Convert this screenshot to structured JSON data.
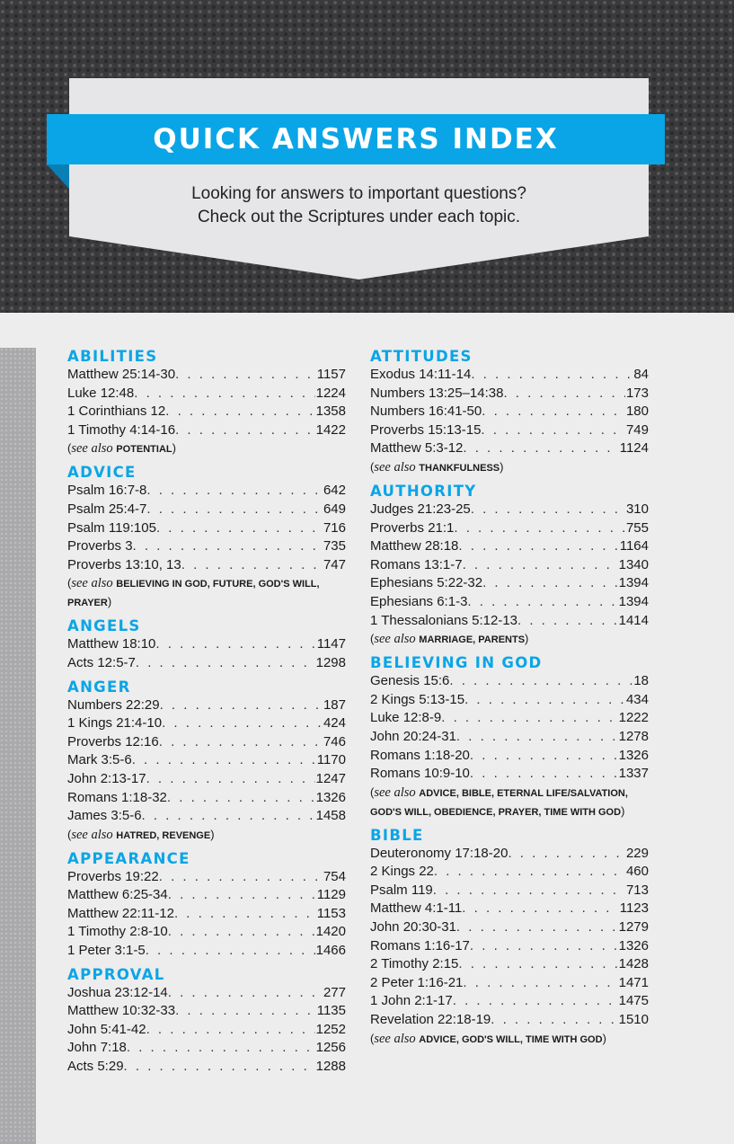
{
  "header": {
    "title": "QUICK ANSWERS INDEX",
    "subtitle_line1": "Looking for answers to important questions?",
    "subtitle_line2": "Check out the Scriptures under each topic.",
    "accent_color": "#0aa5e6"
  },
  "columns": [
    [
      {
        "title": "ABILITIES",
        "entries": [
          [
            "Matthew 25:14-30",
            "1157"
          ],
          [
            "Luke 12:48",
            "1224"
          ],
          [
            "1 Corinthians 12",
            "1358"
          ],
          [
            "1 Timothy 4:14-16",
            "1422"
          ]
        ],
        "see_also": "POTENTIAL"
      },
      {
        "title": "ADVICE",
        "entries": [
          [
            "Psalm 16:7-8",
            "642"
          ],
          [
            "Psalm 25:4-7",
            "649"
          ],
          [
            "Psalm 119:105",
            "716"
          ],
          [
            "Proverbs 3",
            "735"
          ],
          [
            "Proverbs 13:10, 13",
            "747"
          ]
        ],
        "see_also": "BELIEVING IN GOD, FUTURE, GOD'S WILL, PRAYER"
      },
      {
        "title": "ANGELS",
        "entries": [
          [
            "Matthew 18:10",
            "1147"
          ],
          [
            "Acts 12:5-7",
            "1298"
          ]
        ]
      },
      {
        "title": "ANGER",
        "entries": [
          [
            "Numbers 22:29",
            "187"
          ],
          [
            "1 Kings 21:4-10",
            "424"
          ],
          [
            "Proverbs 12:16",
            "746"
          ],
          [
            "Mark 3:5-6",
            "1170"
          ],
          [
            "John 2:13-17",
            "1247"
          ],
          [
            "Romans 1:18-32",
            "1326"
          ],
          [
            "James 3:5-6",
            "1458"
          ]
        ],
        "see_also": "HATRED, REVENGE"
      },
      {
        "title": "APPEARANCE",
        "entries": [
          [
            "Proverbs 19:22",
            "754"
          ],
          [
            "Matthew 6:25-34",
            "1129"
          ],
          [
            "Matthew 22:11-12",
            "1153"
          ],
          [
            "1 Timothy 2:8-10",
            "1420"
          ],
          [
            "1 Peter 3:1-5",
            "1466"
          ]
        ]
      },
      {
        "title": "APPROVAL",
        "entries": [
          [
            "Joshua 23:12-14",
            "277"
          ],
          [
            "Matthew 10:32-33",
            "1135"
          ],
          [
            "John 5:41-42",
            "1252"
          ],
          [
            "John 7:18",
            "1256"
          ],
          [
            "Acts 5:29",
            "1288"
          ]
        ]
      }
    ],
    [
      {
        "title": "ATTITUDES",
        "entries": [
          [
            "Exodus 14:11-14",
            "84"
          ],
          [
            "Numbers 13:25–14:38",
            "173"
          ],
          [
            "Numbers 16:41-50",
            "180"
          ],
          [
            "Proverbs 15:13-15",
            "749"
          ],
          [
            "Matthew 5:3-12",
            "1124"
          ]
        ],
        "see_also": "THANKFULNESS"
      },
      {
        "title": "AUTHORITY",
        "entries": [
          [
            "Judges 21:23-25",
            "310"
          ],
          [
            "Proverbs 21:1",
            "755"
          ],
          [
            "Matthew 28:18",
            "1164"
          ],
          [
            "Romans 13:1-7",
            "1340"
          ],
          [
            "Ephesians 5:22-32",
            "1394"
          ],
          [
            "Ephesians 6:1-3",
            "1394"
          ],
          [
            "1 Thessalonians 5:12-13",
            "1414"
          ]
        ],
        "see_also": "MARRIAGE, PARENTS"
      },
      {
        "title": "BELIEVING IN GOD",
        "entries": [
          [
            "Genesis 15:6",
            "18"
          ],
          [
            "2 Kings 5:13-15",
            "434"
          ],
          [
            "Luke 12:8-9",
            "1222"
          ],
          [
            "John 20:24-31",
            "1278"
          ],
          [
            "Romans 1:18-20",
            "1326"
          ],
          [
            "Romans 10:9-10",
            "1337"
          ]
        ],
        "see_also": "ADVICE, BIBLE, ETERNAL LIFE/SALVATION, GOD'S WILL, OBEDIENCE, PRAYER, TIME WITH GOD"
      },
      {
        "title": "BIBLE",
        "entries": [
          [
            "Deuteronomy 17:18-20",
            "229"
          ],
          [
            "2 Kings 22",
            "460"
          ],
          [
            "Psalm 119",
            "713"
          ],
          [
            "Matthew 4:1-11",
            "1123"
          ],
          [
            "John 20:30-31",
            "1279"
          ],
          [
            "Romans 1:16-17",
            "1326"
          ],
          [
            "2 Timothy 2:15",
            "1428"
          ],
          [
            "2 Peter 1:16-21",
            "1471"
          ],
          [
            "1 John 2:1-17",
            "1475"
          ],
          [
            "Revelation 22:18-19",
            "1510"
          ]
        ],
        "see_also": "ADVICE, GOD'S WILL, TIME WITH GOD"
      }
    ]
  ],
  "labels": {
    "see_prefix": "(",
    "see": "see",
    "also": " also ",
    "see_suffix": ")"
  }
}
